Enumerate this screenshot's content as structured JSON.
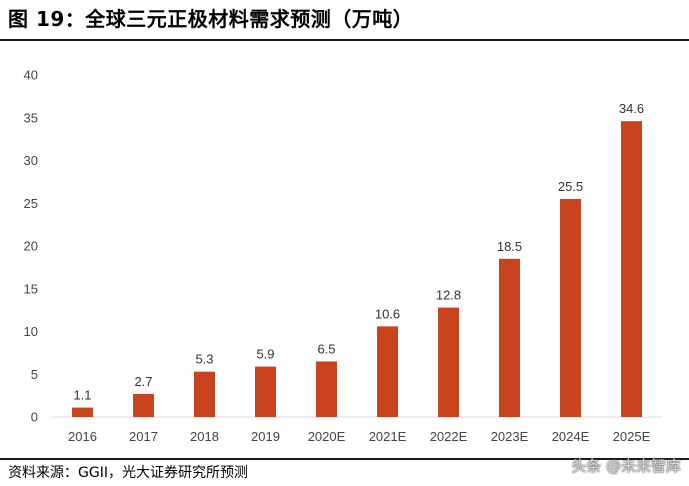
{
  "header": {
    "title": "图 19：全球三元正极材料需求预测（万吨）"
  },
  "footer": {
    "source": "资料来源：GGII，光大证券研究所预测",
    "watermark": "头条 @未来智库"
  },
  "colors": {
    "bar": "#c9431f",
    "axis": "#d9d9d9",
    "text": "#444444"
  },
  "chart_data": {
    "type": "bar",
    "title": "全球三元正极材料需求预测（万吨）",
    "categories": [
      "2016",
      "2017",
      "2018",
      "2019",
      "2020E",
      "2021E",
      "2022E",
      "2023E",
      "2024E",
      "2025E"
    ],
    "values": [
      1.1,
      2.7,
      5.3,
      5.9,
      6.5,
      10.6,
      12.8,
      18.5,
      25.5,
      34.6
    ],
    "value_labels": [
      "1.1",
      "2.7",
      "5.3",
      "5.9",
      "6.5",
      "10.6",
      "12.8",
      "18.5",
      "25.5",
      "34.6"
    ],
    "y_ticks": [
      "0",
      "5",
      "10",
      "15",
      "20",
      "25",
      "30",
      "35",
      "40"
    ],
    "ylim": [
      0,
      40
    ],
    "grid": false,
    "legend": "none"
  }
}
